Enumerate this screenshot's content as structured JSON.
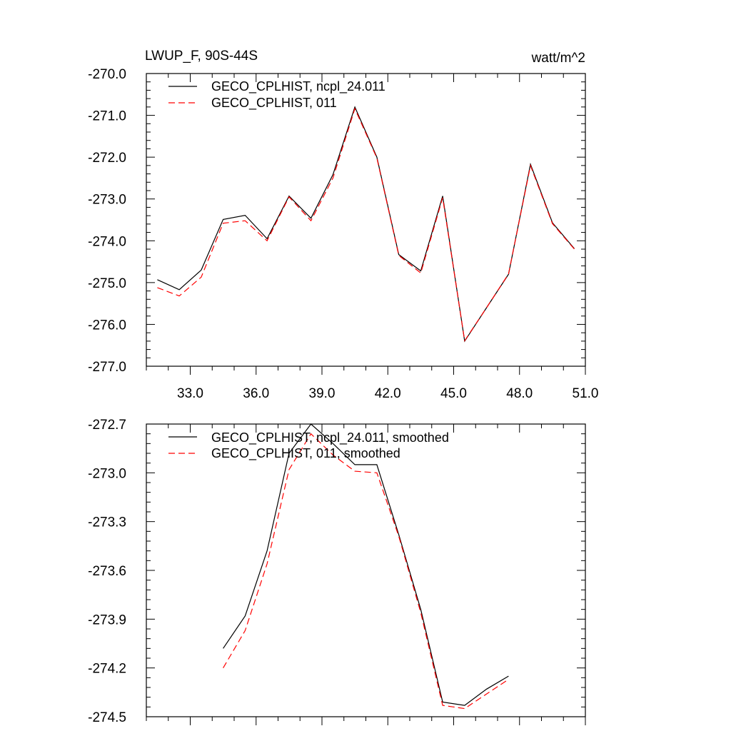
{
  "chart_data": [
    {
      "type": "line",
      "title": "LWUP_F, 90S-44S",
      "units": "watt/m^2",
      "xlim": [
        31,
        51
      ],
      "ylim": [
        -277.0,
        -270.0
      ],
      "x_ticks": [
        33.0,
        36.0,
        39.0,
        42.0,
        45.0,
        48.0,
        51.0
      ],
      "x_tick_labels": [
        "33.0",
        "36.0",
        "39.0",
        "42.0",
        "45.0",
        "48.0",
        "51.0"
      ],
      "y_ticks": [
        -270.0,
        -271.0,
        -272.0,
        -273.0,
        -274.0,
        -275.0,
        -276.0,
        -277.0
      ],
      "y_tick_labels": [
        "-270.0",
        "-271.0",
        "-272.0",
        "-273.0",
        "-274.0",
        "-275.0",
        "-276.0",
        "-277.0"
      ],
      "legend_position": "top-left",
      "x": [
        31.5,
        32.5,
        33.5,
        34.5,
        35.5,
        36.5,
        37.5,
        38.5,
        39.5,
        40.5,
        41.5,
        42.5,
        43.5,
        44.5,
        45.5,
        46.5,
        47.5,
        48.5,
        49.5,
        50.5
      ],
      "series": [
        {
          "name": "GECO_CPLHIST, ncpl_24.011",
          "color": "#000000",
          "dash": "solid",
          "values": [
            -274.93,
            -275.17,
            -274.7,
            -273.49,
            -273.39,
            -273.95,
            -272.93,
            -273.46,
            -272.42,
            -270.8,
            -272.0,
            -274.33,
            -274.72,
            -272.93,
            -276.4,
            -275.6,
            -274.8,
            -272.17,
            -273.57,
            -274.19
          ]
        },
        {
          "name": "GECO_CPLHIST, 011",
          "color": "#ff0000",
          "dash": "dashed",
          "values": [
            -275.12,
            -275.32,
            -274.87,
            -273.58,
            -273.52,
            -274.0,
            -272.95,
            -273.52,
            -272.5,
            -270.84,
            -272.02,
            -274.35,
            -274.77,
            -272.97,
            -276.39,
            -275.6,
            -274.79,
            -272.2,
            -273.59,
            -274.2
          ]
        }
      ]
    },
    {
      "type": "line",
      "title": "",
      "ylim": [
        -274.5,
        -272.7
      ],
      "xlim": [
        31,
        51
      ],
      "x_ticks": [
        33.0,
        36.0,
        39.0,
        42.0,
        45.0,
        48.0,
        51.0
      ],
      "y_ticks": [
        -272.7,
        -273.0,
        -273.3,
        -273.6,
        -273.9,
        -274.2,
        -274.5
      ],
      "y_tick_labels": [
        "-272.7",
        "-273.0",
        "-273.3",
        "-273.6",
        "-273.9",
        "-274.2",
        "-274.5"
      ],
      "legend_position": "top-left",
      "x": [
        34.5,
        35.5,
        36.5,
        37.5,
        38.5,
        39.5,
        40.5,
        41.5,
        42.5,
        43.5,
        44.5,
        45.5,
        46.5,
        47.5
      ],
      "series": [
        {
          "name": "GECO_CPLHIST, ncpl_24.011, smoothed",
          "color": "#000000",
          "dash": "solid",
          "values": [
            -274.08,
            -273.88,
            -273.48,
            -272.88,
            -272.7,
            -272.82,
            -272.95,
            -272.95,
            -273.38,
            -273.84,
            -274.41,
            -274.43,
            -274.33,
            -274.25
          ]
        },
        {
          "name": "GECO_CPLHIST, 011, smoothed",
          "color": "#ff0000",
          "dash": "dashed",
          "values": [
            -274.2,
            -273.97,
            -273.56,
            -272.98,
            -272.76,
            -272.89,
            -272.99,
            -273.0,
            -273.39,
            -273.86,
            -274.43,
            -274.45,
            -274.36,
            -274.27
          ]
        }
      ]
    }
  ]
}
